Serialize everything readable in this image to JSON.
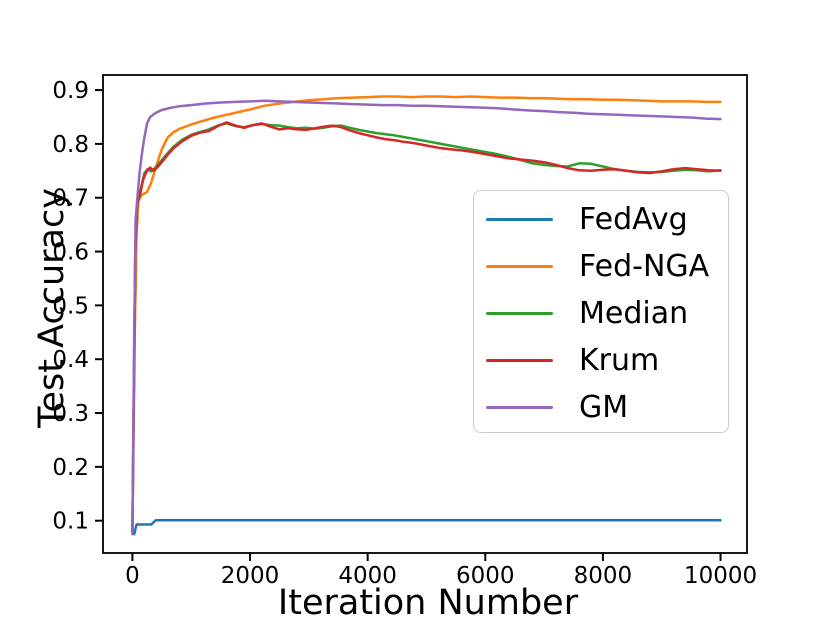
{
  "chart_data": {
    "type": "line",
    "title": "",
    "xlabel": "Iteration Number",
    "ylabel": "Test Accuracy",
    "xlim": [
      -500,
      10450
    ],
    "ylim": [
      0.04,
      0.928
    ],
    "grid": false,
    "legend_position": "center right",
    "x_ticks": {
      "values": [
        0,
        2000,
        4000,
        6000,
        8000,
        10000
      ],
      "labels": [
        "0",
        "2000",
        "4000",
        "6000",
        "8000",
        "10000"
      ]
    },
    "y_ticks": {
      "values": [
        0.1,
        0.2,
        0.3,
        0.4,
        0.5,
        0.6,
        0.7,
        0.8,
        0.9
      ],
      "labels": [
        "0.1",
        "0.2",
        "0.3",
        "0.4",
        "0.5",
        "0.6",
        "0.7",
        "0.8",
        "0.9"
      ]
    },
    "axis_color": "#000000",
    "legend_border_color": "#cccccc",
    "series": [
      {
        "name": "FedAvg",
        "color": "#1f77b4",
        "points": [
          [
            0,
            0.086
          ],
          [
            30,
            0.075
          ],
          [
            70,
            0.093
          ],
          [
            320,
            0.093
          ],
          [
            400,
            0.101
          ],
          [
            1000,
            0.101
          ],
          [
            2000,
            0.101
          ],
          [
            3000,
            0.101
          ],
          [
            4000,
            0.101
          ],
          [
            5000,
            0.101
          ],
          [
            6000,
            0.101
          ],
          [
            7000,
            0.101
          ],
          [
            8000,
            0.101
          ],
          [
            9000,
            0.101
          ],
          [
            10000,
            0.101
          ]
        ]
      },
      {
        "name": "Fed-NGA",
        "color": "#ff7f0e",
        "points": [
          [
            0,
            0.078
          ],
          [
            40,
            0.45
          ],
          [
            70,
            0.63
          ],
          [
            100,
            0.695
          ],
          [
            160,
            0.705
          ],
          [
            250,
            0.711
          ],
          [
            320,
            0.728
          ],
          [
            400,
            0.757
          ],
          [
            500,
            0.79
          ],
          [
            600,
            0.812
          ],
          [
            700,
            0.822
          ],
          [
            800,
            0.828
          ],
          [
            1000,
            0.836
          ],
          [
            1200,
            0.843
          ],
          [
            1400,
            0.849
          ],
          [
            1600,
            0.854
          ],
          [
            1800,
            0.859
          ],
          [
            2000,
            0.864
          ],
          [
            2250,
            0.871
          ],
          [
            2500,
            0.875
          ],
          [
            2750,
            0.878
          ],
          [
            3000,
            0.881
          ],
          [
            3250,
            0.883
          ],
          [
            3500,
            0.885
          ],
          [
            3750,
            0.886
          ],
          [
            4000,
            0.887
          ],
          [
            4250,
            0.888
          ],
          [
            4500,
            0.888
          ],
          [
            4750,
            0.887
          ],
          [
            5000,
            0.888
          ],
          [
            5250,
            0.888
          ],
          [
            5500,
            0.887
          ],
          [
            5750,
            0.888
          ],
          [
            6000,
            0.887
          ],
          [
            6250,
            0.886
          ],
          [
            6500,
            0.886
          ],
          [
            6750,
            0.885
          ],
          [
            7000,
            0.885
          ],
          [
            7250,
            0.884
          ],
          [
            7500,
            0.883
          ],
          [
            7750,
            0.883
          ],
          [
            8000,
            0.882
          ],
          [
            8250,
            0.882
          ],
          [
            8500,
            0.881
          ],
          [
            8750,
            0.88
          ],
          [
            9000,
            0.879
          ],
          [
            9250,
            0.879
          ],
          [
            9500,
            0.879
          ],
          [
            9750,
            0.878
          ],
          [
            10000,
            0.878
          ]
        ]
      },
      {
        "name": "Median",
        "color": "#2ca02c",
        "points": [
          [
            0,
            0.08
          ],
          [
            50,
            0.6
          ],
          [
            80,
            0.69
          ],
          [
            130,
            0.705
          ],
          [
            200,
            0.745
          ],
          [
            260,
            0.753
          ],
          [
            320,
            0.749
          ],
          [
            400,
            0.757
          ],
          [
            500,
            0.77
          ],
          [
            600,
            0.783
          ],
          [
            700,
            0.795
          ],
          [
            850,
            0.808
          ],
          [
            1000,
            0.817
          ],
          [
            1150,
            0.822
          ],
          [
            1300,
            0.827
          ],
          [
            1450,
            0.834
          ],
          [
            1600,
            0.838
          ],
          [
            1750,
            0.833
          ],
          [
            1900,
            0.831
          ],
          [
            2050,
            0.835
          ],
          [
            2200,
            0.837
          ],
          [
            2350,
            0.835
          ],
          [
            2500,
            0.834
          ],
          [
            2650,
            0.831
          ],
          [
            2800,
            0.829
          ],
          [
            2950,
            0.83
          ],
          [
            3100,
            0.828
          ],
          [
            3250,
            0.83
          ],
          [
            3400,
            0.833
          ],
          [
            3550,
            0.834
          ],
          [
            3700,
            0.83
          ],
          [
            3850,
            0.826
          ],
          [
            4000,
            0.823
          ],
          [
            4150,
            0.82
          ],
          [
            4300,
            0.818
          ],
          [
            4450,
            0.816
          ],
          [
            4600,
            0.813
          ],
          [
            4750,
            0.81
          ],
          [
            4900,
            0.807
          ],
          [
            5050,
            0.804
          ],
          [
            5200,
            0.801
          ],
          [
            5400,
            0.797
          ],
          [
            5600,
            0.793
          ],
          [
            5800,
            0.789
          ],
          [
            6000,
            0.785
          ],
          [
            6200,
            0.781
          ],
          [
            6400,
            0.776
          ],
          [
            6600,
            0.77
          ],
          [
            6800,
            0.764
          ],
          [
            7000,
            0.761
          ],
          [
            7200,
            0.759
          ],
          [
            7400,
            0.758
          ],
          [
            7600,
            0.764
          ],
          [
            7800,
            0.763
          ],
          [
            8000,
            0.758
          ],
          [
            8200,
            0.753
          ],
          [
            8400,
            0.75
          ],
          [
            8600,
            0.748
          ],
          [
            8800,
            0.747
          ],
          [
            9000,
            0.748
          ],
          [
            9200,
            0.75
          ],
          [
            9400,
            0.752
          ],
          [
            9600,
            0.751
          ],
          [
            9800,
            0.749
          ],
          [
            10000,
            0.751
          ]
        ]
      },
      {
        "name": "Krum",
        "color": "#d62728",
        "points": [
          [
            0,
            0.08
          ],
          [
            50,
            0.6
          ],
          [
            80,
            0.685
          ],
          [
            130,
            0.71
          ],
          [
            180,
            0.733
          ],
          [
            240,
            0.749
          ],
          [
            300,
            0.756
          ],
          [
            360,
            0.75
          ],
          [
            420,
            0.756
          ],
          [
            500,
            0.766
          ],
          [
            600,
            0.78
          ],
          [
            700,
            0.792
          ],
          [
            850,
            0.805
          ],
          [
            1000,
            0.815
          ],
          [
            1150,
            0.821
          ],
          [
            1300,
            0.824
          ],
          [
            1450,
            0.833
          ],
          [
            1600,
            0.84
          ],
          [
            1750,
            0.834
          ],
          [
            1900,
            0.83
          ],
          [
            2050,
            0.835
          ],
          [
            2200,
            0.838
          ],
          [
            2350,
            0.832
          ],
          [
            2500,
            0.827
          ],
          [
            2650,
            0.829
          ],
          [
            2800,
            0.827
          ],
          [
            2950,
            0.826
          ],
          [
            3100,
            0.829
          ],
          [
            3250,
            0.832
          ],
          [
            3400,
            0.834
          ],
          [
            3550,
            0.831
          ],
          [
            3700,
            0.825
          ],
          [
            3850,
            0.82
          ],
          [
            4000,
            0.816
          ],
          [
            4150,
            0.812
          ],
          [
            4300,
            0.809
          ],
          [
            4450,
            0.807
          ],
          [
            4600,
            0.804
          ],
          [
            4750,
            0.802
          ],
          [
            4900,
            0.799
          ],
          [
            5050,
            0.796
          ],
          [
            5200,
            0.793
          ],
          [
            5400,
            0.79
          ],
          [
            5600,
            0.788
          ],
          [
            5800,
            0.785
          ],
          [
            6000,
            0.781
          ],
          [
            6200,
            0.777
          ],
          [
            6400,
            0.773
          ],
          [
            6600,
            0.771
          ],
          [
            6800,
            0.769
          ],
          [
            7000,
            0.766
          ],
          [
            7200,
            0.761
          ],
          [
            7400,
            0.755
          ],
          [
            7600,
            0.751
          ],
          [
            7800,
            0.75
          ],
          [
            8000,
            0.752
          ],
          [
            8200,
            0.753
          ],
          [
            8400,
            0.75
          ],
          [
            8600,
            0.747
          ],
          [
            8800,
            0.746
          ],
          [
            9000,
            0.749
          ],
          [
            9200,
            0.753
          ],
          [
            9400,
            0.755
          ],
          [
            9600,
            0.753
          ],
          [
            9800,
            0.751
          ],
          [
            10000,
            0.75
          ]
        ]
      },
      {
        "name": "GM",
        "color": "#9467bd",
        "points": [
          [
            0,
            0.075
          ],
          [
            30,
            0.45
          ],
          [
            55,
            0.66
          ],
          [
            85,
            0.7
          ],
          [
            120,
            0.745
          ],
          [
            160,
            0.78
          ],
          [
            200,
            0.81
          ],
          [
            250,
            0.838
          ],
          [
            300,
            0.85
          ],
          [
            400,
            0.858
          ],
          [
            500,
            0.863
          ],
          [
            650,
            0.867
          ],
          [
            800,
            0.87
          ],
          [
            1000,
            0.872
          ],
          [
            1250,
            0.875
          ],
          [
            1500,
            0.877
          ],
          [
            1750,
            0.878
          ],
          [
            2000,
            0.879
          ],
          [
            2250,
            0.88
          ],
          [
            2500,
            0.879
          ],
          [
            2750,
            0.878
          ],
          [
            3000,
            0.877
          ],
          [
            3250,
            0.876
          ],
          [
            3500,
            0.875
          ],
          [
            3750,
            0.874
          ],
          [
            4000,
            0.873
          ],
          [
            4250,
            0.872
          ],
          [
            4500,
            0.872
          ],
          [
            4750,
            0.871
          ],
          [
            5000,
            0.871
          ],
          [
            5250,
            0.87
          ],
          [
            5500,
            0.869
          ],
          [
            5750,
            0.868
          ],
          [
            6000,
            0.867
          ],
          [
            6250,
            0.866
          ],
          [
            6500,
            0.864
          ],
          [
            6750,
            0.862
          ],
          [
            7000,
            0.861
          ],
          [
            7250,
            0.859
          ],
          [
            7500,
            0.858
          ],
          [
            7750,
            0.856
          ],
          [
            8000,
            0.855
          ],
          [
            8250,
            0.854
          ],
          [
            8500,
            0.853
          ],
          [
            8750,
            0.852
          ],
          [
            9000,
            0.851
          ],
          [
            9250,
            0.85
          ],
          [
            9500,
            0.849
          ],
          [
            9750,
            0.847
          ],
          [
            10000,
            0.846
          ]
        ]
      }
    ]
  }
}
